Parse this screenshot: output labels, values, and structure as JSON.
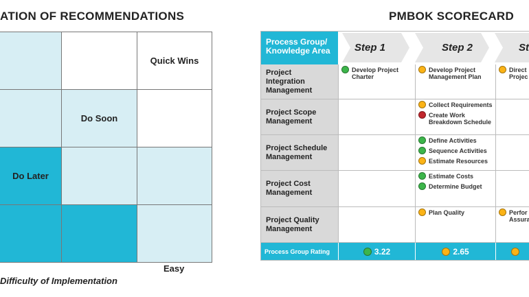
{
  "matrix": {
    "title": "ATION OF RECOMMENDATIONS",
    "quadrants": {
      "quick_wins": "Quick Wins",
      "do_soon": "Do Soon",
      "do_later": "Do Later"
    },
    "x_axis_end_label": "Easy",
    "x_axis_label": "Difficulty of Implementation"
  },
  "scorecard": {
    "title": "PMBOK SCORECARD",
    "header_label": "Process Group/ Knowledge Area",
    "steps": [
      "Step 1",
      "Step 2",
      "St"
    ],
    "rows": [
      {
        "label": "Project Integration Management",
        "cells": [
          [
            {
              "status": "green",
              "text": "Develop Project Charter"
            }
          ],
          [
            {
              "status": "yellow",
              "text": "Develop Project Management Plan"
            }
          ],
          [
            {
              "status": "yellow",
              "text": "Direct Projec"
            }
          ]
        ]
      },
      {
        "label": "Project Scope Management",
        "cells": [
          [],
          [
            {
              "status": "yellow",
              "text": "Collect Requirements"
            },
            {
              "status": "red",
              "text": "Create Work Breakdown Schedule"
            }
          ],
          []
        ]
      },
      {
        "label": "Project Schedule Management",
        "cells": [
          [],
          [
            {
              "status": "green",
              "text": "Define Activities"
            },
            {
              "status": "green",
              "text": "Sequence Activities"
            },
            {
              "status": "yellow",
              "text": "Estimate Resources"
            }
          ],
          []
        ]
      },
      {
        "label": "Project Cost Management",
        "cells": [
          [],
          [
            {
              "status": "green",
              "text": "Estimate Costs"
            },
            {
              "status": "green",
              "text": "Determine Budget"
            }
          ],
          []
        ]
      },
      {
        "label": "Project Quality Management",
        "cells": [
          [],
          [
            {
              "status": "yellow",
              "text": "Plan Quality"
            }
          ],
          [
            {
              "status": "yellow",
              "text": "Perfor Assura"
            }
          ]
        ]
      }
    ],
    "footer": {
      "label": "Process Group Rating",
      "ratings": [
        {
          "status": "green",
          "value": "3.22"
        },
        {
          "status": "yellow",
          "value": "2.65"
        },
        {
          "status": "yellow",
          "value": ""
        }
      ]
    }
  },
  "colors": {
    "teal": "#21b7d6",
    "light_teal": "#d7eef4",
    "green": "#3cb54a",
    "yellow": "#fbb316",
    "red": "#c1272d"
  }
}
